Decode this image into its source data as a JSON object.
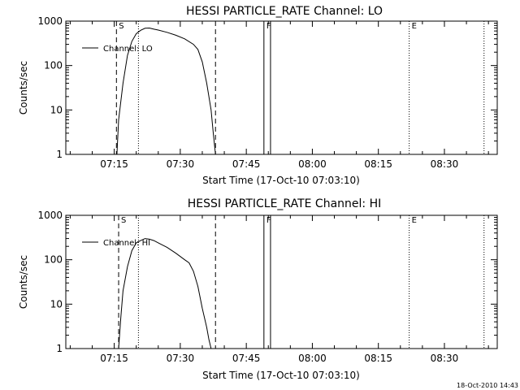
{
  "chart_data": [
    {
      "type": "line",
      "title": "HESSI PARTICLE_RATE Channel: LO",
      "xlabel": "Start Time (17-Oct-10 07:03:10)",
      "ylabel": "Counts/sec",
      "yscale": "log",
      "ylim": [
        1,
        1000
      ],
      "xlim": [
        "07:04",
        "08:42"
      ],
      "xticks": [
        "07:15",
        "07:30",
        "07:45",
        "08:00",
        "08:15",
        "08:30"
      ],
      "yticks": [
        "1",
        "10",
        "100",
        "1000"
      ],
      "legend_position": "top-left",
      "grid": false,
      "series": [
        {
          "name": "Channel: LO",
          "x": [
            "07:15.6",
            "07:16",
            "07:17",
            "07:18",
            "07:19",
            "07:20",
            "07:21",
            "07:22",
            "07:23",
            "07:24",
            "07:25",
            "07:27",
            "07:29",
            "07:31",
            "07:33",
            "07:34",
            "07:35",
            "07:36",
            "07:37",
            "07:37.5",
            "07:38"
          ],
          "y": [
            1,
            6,
            40,
            170,
            350,
            520,
            620,
            690,
            700,
            660,
            630,
            560,
            480,
            400,
            300,
            230,
            120,
            40,
            10,
            3,
            1
          ]
        }
      ],
      "vlines": [
        {
          "x": "07:15.5",
          "style": "dashed",
          "label": "S"
        },
        {
          "x": "07:20.5",
          "style": "dotted",
          "label": ""
        },
        {
          "x": "07:38",
          "style": "dashed",
          "label": ""
        },
        {
          "x": "07:49",
          "style": "solid",
          "label": "F"
        },
        {
          "x": "07:50.5",
          "style": "solid",
          "label": ""
        },
        {
          "x": "08:22",
          "style": "dotted",
          "label": "E"
        },
        {
          "x": "08:39",
          "style": "dotted",
          "label": ""
        }
      ]
    },
    {
      "type": "line",
      "title": "HESSI PARTICLE_RATE Channel: HI",
      "xlabel": "Start Time (17-Oct-10 07:03:10)",
      "ylabel": "Counts/sec",
      "yscale": "log",
      "ylim": [
        1,
        1000
      ],
      "xlim": [
        "07:04",
        "08:42"
      ],
      "xticks": [
        "07:15",
        "07:30",
        "07:45",
        "08:00",
        "08:15",
        "08:30"
      ],
      "yticks": [
        "1",
        "10",
        "100",
        "1000"
      ],
      "legend_position": "top-left",
      "grid": false,
      "series": [
        {
          "name": "Channel: HI",
          "x": [
            "07:16",
            "07:16.5",
            "07:17",
            "07:18",
            "07:19",
            "07:20",
            "07:21",
            "07:22",
            "07:23",
            "07:24",
            "07:25",
            "07:27",
            "07:29",
            "07:31",
            "07:32",
            "07:33",
            "07:34",
            "07:35",
            "07:36",
            "07:36.5",
            "07:37"
          ],
          "y": [
            1,
            5,
            20,
            70,
            160,
            240,
            270,
            300,
            290,
            270,
            240,
            190,
            140,
            100,
            85,
            55,
            25,
            8,
            3,
            1.6,
            1
          ]
        }
      ],
      "vlines": [
        {
          "x": "07:16",
          "style": "dashed",
          "label": "S"
        },
        {
          "x": "07:20.5",
          "style": "dotted",
          "label": ""
        },
        {
          "x": "07:38",
          "style": "dashed",
          "label": ""
        },
        {
          "x": "07:49",
          "style": "solid",
          "label": "F"
        },
        {
          "x": "07:50.5",
          "style": "solid",
          "label": ""
        },
        {
          "x": "08:22",
          "style": "dotted",
          "label": "E"
        },
        {
          "x": "08:39",
          "style": "dotted",
          "label": ""
        }
      ]
    }
  ],
  "footer": {
    "timestamp": "18-Oct-2010 14:43"
  }
}
